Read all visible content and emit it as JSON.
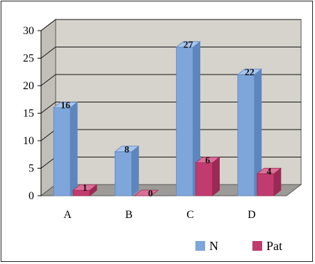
{
  "chart_data": {
    "type": "bar",
    "categories": [
      "A",
      "B",
      "C",
      "D"
    ],
    "series": [
      {
        "name": "N",
        "values": [
          16,
          8,
          27,
          22
        ],
        "color": "#7EA6DA",
        "side_color": "#5D86BE",
        "top_color": "#A9C5EC"
      },
      {
        "name": "Pat",
        "values": [
          1,
          0,
          6,
          4
        ],
        "color": "#C23B6E",
        "side_color": "#9A2A55",
        "top_color": "#DC6F98"
      }
    ],
    "y_ticks": [
      "0",
      "5",
      "10",
      "15",
      "20",
      "25",
      "30"
    ],
    "ylim": [
      0,
      30
    ],
    "title": "",
    "xlabel": "",
    "ylabel": "",
    "grid": true,
    "legend_position": "bottom-right",
    "wall_color": "#D6D3CC",
    "floor_color": "#9D9B97"
  }
}
